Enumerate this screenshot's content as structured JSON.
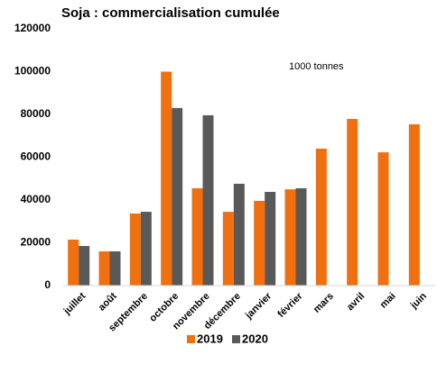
{
  "chart_data": {
    "type": "bar",
    "title": "Soja : commercialisation cumulée",
    "annotation": "1000 tonnes",
    "categories": [
      "juillet",
      "août",
      "septembre",
      "octobre",
      "novembre",
      "décembre",
      "janvier",
      "février",
      "mars",
      "avril",
      "mai",
      "juin"
    ],
    "series": [
      {
        "name": "2019",
        "color": "#f07010",
        "values": [
          21500,
          16000,
          33700,
          100000,
          45500,
          34500,
          39600,
          45000,
          64000,
          77900,
          62300,
          75400
        ]
      },
      {
        "name": "2020",
        "color": "#595959",
        "values": [
          18500,
          16000,
          34500,
          83000,
          79600,
          47600,
          43800,
          45500,
          null,
          null,
          null,
          null
        ]
      }
    ],
    "ylim": [
      0,
      120000
    ],
    "yticks": [
      0,
      20000,
      40000,
      60000,
      80000,
      100000,
      120000
    ],
    "grid": false,
    "legend": "bottom"
  }
}
